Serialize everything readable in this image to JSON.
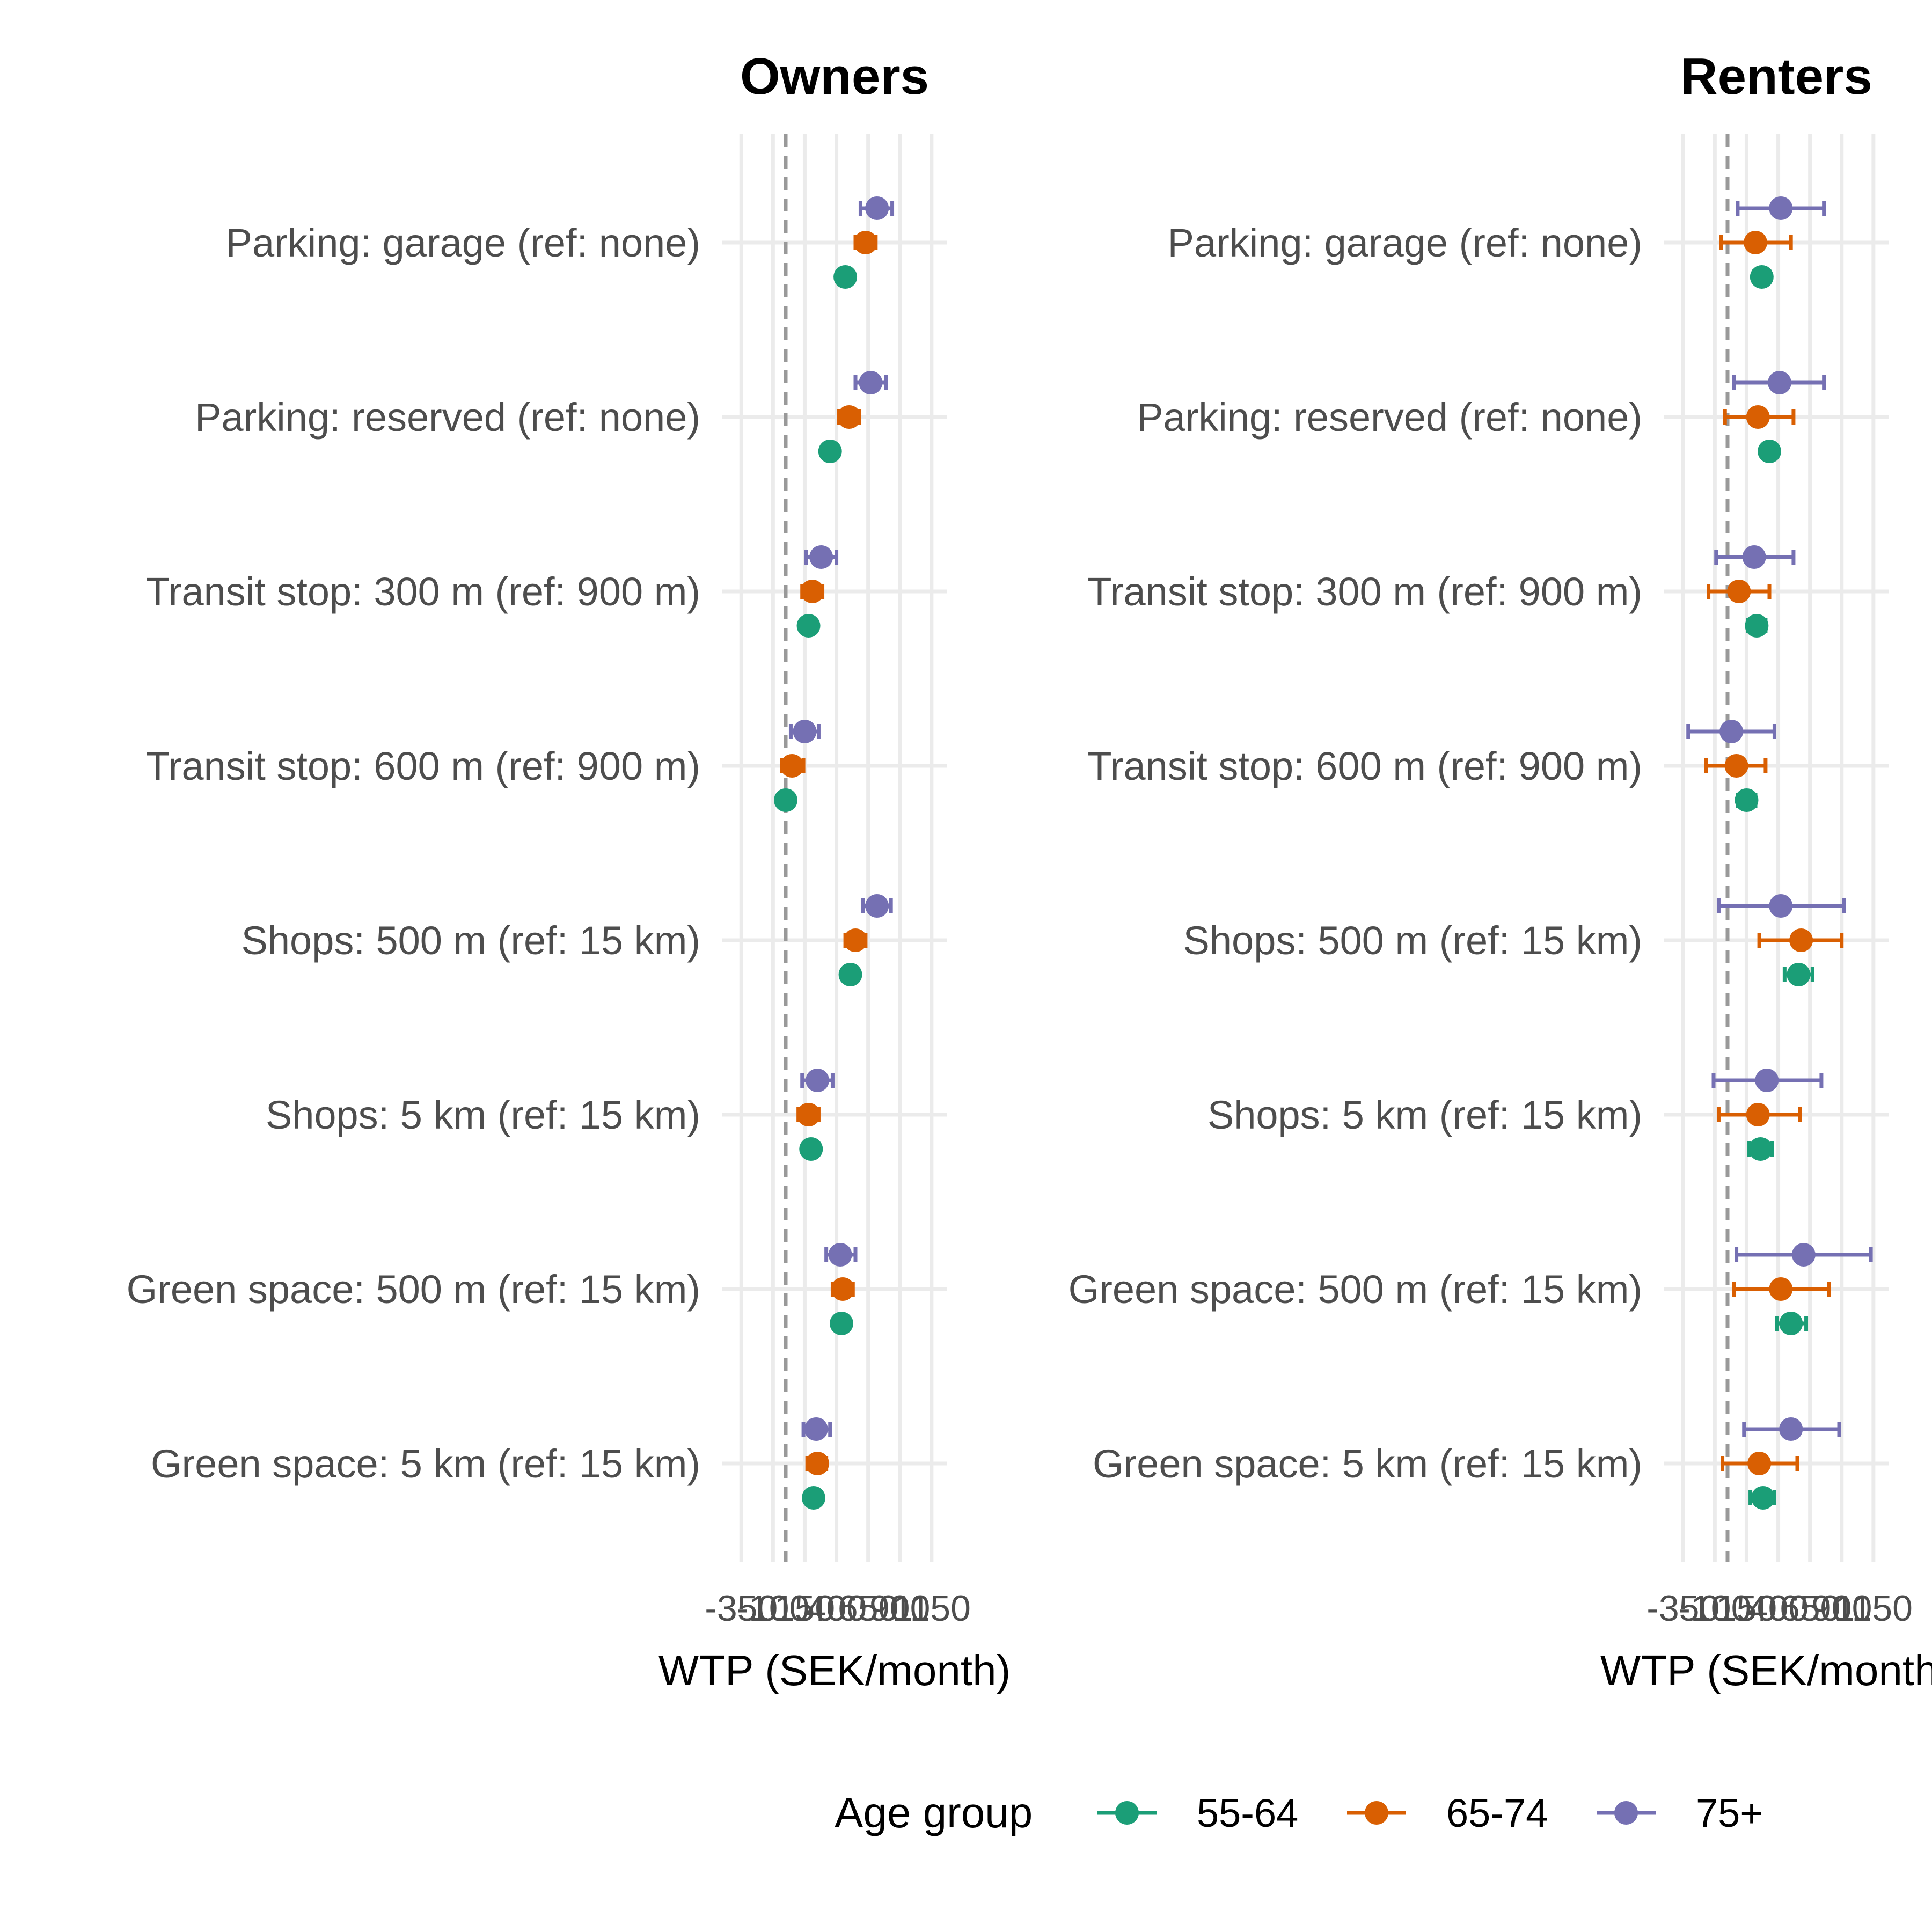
{
  "chart_data": {
    "type": "dot-errorbar",
    "xlabel": "WTP (SEK/month)",
    "x_ticks": [
      -350,
      -100,
      150,
      400,
      650,
      900,
      1150
    ],
    "xlim": [
      -440,
      1210
    ],
    "reference_line": 0,
    "grid": true,
    "legend": {
      "title": "Age group",
      "position": "bottom",
      "entries": [
        {
          "name": "55-64",
          "color": "#1b9e77"
        },
        {
          "name": "65-74",
          "color": "#d95f02"
        },
        {
          "name": "75+",
          "color": "#7570b3"
        }
      ]
    },
    "categories": [
      "Parking: garage (ref: none)",
      "Parking: reserved (ref: none)",
      "Transit stop: 300 m (ref: 900 m)",
      "Transit stop: 600 m (ref: 900 m)",
      "Shops: 500 m (ref: 15 km)",
      "Shops: 5 km (ref: 15 km)",
      "Green space: 500 m (ref: 15 km)",
      "Green space: 5 km (ref: 15 km)"
    ],
    "panels": [
      {
        "title": "Owners",
        "series": [
          {
            "name": "55-64",
            "points": [
              {
                "estimate": 470,
                "lower": 430,
                "upper": 510
              },
              {
                "estimate": 350,
                "lower": 320,
                "upper": 380
              },
              {
                "estimate": 180,
                "lower": 160,
                "upper": 210
              },
              {
                "estimate": 0,
                "lower": -20,
                "upper": 20
              },
              {
                "estimate": 510,
                "lower": 480,
                "upper": 540
              },
              {
                "estimate": 200,
                "lower": 170,
                "upper": 230
              },
              {
                "estimate": 440,
                "lower": 410,
                "upper": 480
              },
              {
                "estimate": 220,
                "lower": 200,
                "upper": 240
              }
            ]
          },
          {
            "name": "65-74",
            "points": [
              {
                "estimate": 630,
                "lower": 550,
                "upper": 710
              },
              {
                "estimate": 500,
                "lower": 420,
                "upper": 580
              },
              {
                "estimate": 210,
                "lower": 130,
                "upper": 290
              },
              {
                "estimate": 50,
                "lower": -30,
                "upper": 140
              },
              {
                "estimate": 550,
                "lower": 470,
                "upper": 630
              },
              {
                "estimate": 180,
                "lower": 100,
                "upper": 260
              },
              {
                "estimate": 450,
                "lower": 370,
                "upper": 530
              },
              {
                "estimate": 250,
                "lower": 170,
                "upper": 320
              }
            ]
          },
          {
            "name": "75+",
            "points": [
              {
                "estimate": 720,
                "lower": 590,
                "upper": 840
              },
              {
                "estimate": 670,
                "lower": 550,
                "upper": 790
              },
              {
                "estimate": 280,
                "lower": 160,
                "upper": 400
              },
              {
                "estimate": 150,
                "lower": 40,
                "upper": 260
              },
              {
                "estimate": 720,
                "lower": 610,
                "upper": 830
              },
              {
                "estimate": 250,
                "lower": 130,
                "upper": 370
              },
              {
                "estimate": 430,
                "lower": 320,
                "upper": 550
              },
              {
                "estimate": 240,
                "lower": 140,
                "upper": 350
              }
            ]
          }
        ]
      },
      {
        "title": "Renters",
        "series": [
          {
            "name": "55-64",
            "points": [
              {
                "estimate": 270,
                "lower": 210,
                "upper": 330
              },
              {
                "estimate": 330,
                "lower": 270,
                "upper": 390
              },
              {
                "estimate": 230,
                "lower": 160,
                "upper": 300
              },
              {
                "estimate": 150,
                "lower": 80,
                "upper": 220
              },
              {
                "estimate": 560,
                "lower": 450,
                "upper": 670
              },
              {
                "estimate": 260,
                "lower": 170,
                "upper": 350
              },
              {
                "estimate": 500,
                "lower": 390,
                "upper": 620
              },
              {
                "estimate": 280,
                "lower": 180,
                "upper": 370
              }
            ]
          },
          {
            "name": "65-74",
            "points": [
              {
                "estimate": 220,
                "lower": -50,
                "upper": 500
              },
              {
                "estimate": 240,
                "lower": -20,
                "upper": 520
              },
              {
                "estimate": 90,
                "lower": -150,
                "upper": 330
              },
              {
                "estimate": 70,
                "lower": -170,
                "upper": 300
              },
              {
                "estimate": 580,
                "lower": 250,
                "upper": 900
              },
              {
                "estimate": 240,
                "lower": -70,
                "upper": 570
              },
              {
                "estimate": 420,
                "lower": 50,
                "upper": 800
              },
              {
                "estimate": 250,
                "lower": -40,
                "upper": 550
              }
            ]
          },
          {
            "name": "75+",
            "points": [
              {
                "estimate": 420,
                "lower": 80,
                "upper": 760
              },
              {
                "estimate": 410,
                "lower": 50,
                "upper": 760
              },
              {
                "estimate": 210,
                "lower": -90,
                "upper": 520
              },
              {
                "estimate": 30,
                "lower": -310,
                "upper": 370
              },
              {
                "estimate": 420,
                "lower": -70,
                "upper": 920
              },
              {
                "estimate": 310,
                "lower": -110,
                "upper": 740
              },
              {
                "estimate": 600,
                "lower": 70,
                "upper": 1130
              },
              {
                "estimate": 500,
                "lower": 130,
                "upper": 880
              }
            ]
          }
        ]
      }
    ]
  }
}
